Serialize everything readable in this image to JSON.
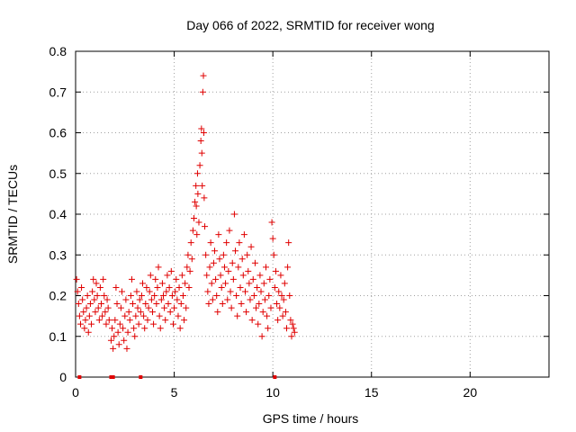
{
  "chart_data": {
    "type": "scatter",
    "title": "Day 066 of 2022, SRMTID for receiver wong",
    "xlabel": "GPS time / hours",
    "ylabel": "SRMTID / TECUs",
    "xlim": [
      0,
      24
    ],
    "ylim": [
      0,
      0.8
    ],
    "x_ticks": [
      0,
      5,
      10,
      15,
      20
    ],
    "y_ticks": [
      0,
      0.1,
      0.2,
      0.3,
      0.4,
      0.5,
      0.6,
      0.7,
      0.8
    ],
    "x_tick_labels": [
      "0",
      "5",
      "10",
      "15",
      "20"
    ],
    "y_tick_labels": [
      "0",
      "0.1",
      "0.2",
      "0.3",
      "0.4",
      "0.5",
      "0.6",
      "0.7",
      "0.8"
    ],
    "grid": true,
    "marker": "+",
    "color": "#e00000",
    "series": [
      {
        "name": "SRMTID",
        "points": [
          [
            0.05,
            0.24
          ],
          [
            0.1,
            0.21
          ],
          [
            0.15,
            0.18
          ],
          [
            0.2,
            0.15
          ],
          [
            0.25,
            0.13
          ],
          [
            0.3,
            0.22
          ],
          [
            0.35,
            0.19
          ],
          [
            0.4,
            0.16
          ],
          [
            0.45,
            0.12
          ],
          [
            0.5,
            0.14
          ],
          [
            0.55,
            0.17
          ],
          [
            0.6,
            0.2
          ],
          [
            0.65,
            0.11
          ],
          [
            0.7,
            0.15
          ],
          [
            0.75,
            0.18
          ],
          [
            0.8,
            0.13
          ],
          [
            0.85,
            0.21
          ],
          [
            0.9,
            0.24
          ],
          [
            0.95,
            0.19
          ],
          [
            1.0,
            0.16
          ],
          [
            1.05,
            0.23
          ],
          [
            1.1,
            0.2
          ],
          [
            1.15,
            0.17
          ],
          [
            1.2,
            0.14
          ],
          [
            1.25,
            0.22
          ],
          [
            1.3,
            0.18
          ],
          [
            1.35,
            0.15
          ],
          [
            1.4,
            0.24
          ],
          [
            1.45,
            0.2
          ],
          [
            1.5,
            0.16
          ],
          [
            1.55,
            0.13
          ],
          [
            1.6,
            0.19
          ],
          [
            1.65,
            0.17
          ],
          [
            1.7,
            0.14
          ],
          [
            1.8,
            0.09
          ],
          [
            1.85,
            0.12
          ],
          [
            1.9,
            0.07
          ],
          [
            1.95,
            0.1
          ],
          [
            2.0,
            0.14
          ],
          [
            2.05,
            0.22
          ],
          [
            2.1,
            0.18
          ],
          [
            2.15,
            0.11
          ],
          [
            2.2,
            0.08
          ],
          [
            2.25,
            0.13
          ],
          [
            2.3,
            0.17
          ],
          [
            2.35,
            0.21
          ],
          [
            2.4,
            0.12
          ],
          [
            2.45,
            0.09
          ],
          [
            2.5,
            0.15
          ],
          [
            2.55,
            0.19
          ],
          [
            2.6,
            0.07
          ],
          [
            2.65,
            0.11
          ],
          [
            2.7,
            0.16
          ],
          [
            2.75,
            0.14
          ],
          [
            2.8,
            0.2
          ],
          [
            2.85,
            0.24
          ],
          [
            2.9,
            0.18
          ],
          [
            2.95,
            0.12
          ],
          [
            3.0,
            0.1
          ],
          [
            3.05,
            0.15
          ],
          [
            3.1,
            0.21
          ],
          [
            3.15,
            0.17
          ],
          [
            3.2,
            0.13
          ],
          [
            3.25,
            0.19
          ],
          [
            3.3,
            0.16
          ],
          [
            3.35,
            0.2
          ],
          [
            3.4,
            0.23
          ],
          [
            3.45,
            0.15
          ],
          [
            3.5,
            0.12
          ],
          [
            3.55,
            0.18
          ],
          [
            3.6,
            0.22
          ],
          [
            3.65,
            0.14
          ],
          [
            3.7,
            0.17
          ],
          [
            3.75,
            0.21
          ],
          [
            3.8,
            0.25
          ],
          [
            3.85,
            0.19
          ],
          [
            3.9,
            0.16
          ],
          [
            3.95,
            0.13
          ],
          [
            4.0,
            0.2
          ],
          [
            4.05,
            0.24
          ],
          [
            4.1,
            0.18
          ],
          [
            4.15,
            0.22
          ],
          [
            4.2,
            0.27
          ],
          [
            4.25,
            0.15
          ],
          [
            4.3,
            0.12
          ],
          [
            4.35,
            0.19
          ],
          [
            4.4,
            0.23
          ],
          [
            4.45,
            0.2
          ],
          [
            4.5,
            0.17
          ],
          [
            4.55,
            0.14
          ],
          [
            4.6,
            0.21
          ],
          [
            4.65,
            0.25
          ],
          [
            4.7,
            0.18
          ],
          [
            4.75,
            0.22
          ],
          [
            4.8,
            0.16
          ],
          [
            4.85,
            0.26
          ],
          [
            4.9,
            0.2
          ],
          [
            4.95,
            0.13
          ],
          [
            5.0,
            0.17
          ],
          [
            5.05,
            0.21
          ],
          [
            5.1,
            0.24
          ],
          [
            5.15,
            0.19
          ],
          [
            5.2,
            0.15
          ],
          [
            5.25,
            0.22
          ],
          [
            5.3,
            0.12
          ],
          [
            5.35,
            0.18
          ],
          [
            5.4,
            0.25
          ],
          [
            5.45,
            0.2
          ],
          [
            5.5,
            0.14
          ],
          [
            5.55,
            0.23
          ],
          [
            5.6,
            0.17
          ],
          [
            5.65,
            0.27
          ],
          [
            5.7,
            0.3
          ],
          [
            5.75,
            0.22
          ],
          [
            5.8,
            0.26
          ],
          [
            5.85,
            0.33
          ],
          [
            5.9,
            0.29
          ],
          [
            5.95,
            0.36
          ],
          [
            6.0,
            0.39
          ],
          [
            6.05,
            0.43
          ],
          [
            6.1,
            0.47
          ],
          [
            6.12,
            0.42
          ],
          [
            6.15,
            0.35
          ],
          [
            6.18,
            0.5
          ],
          [
            6.2,
            0.45
          ],
          [
            6.25,
            0.38
          ],
          [
            6.3,
            0.52
          ],
          [
            6.35,
            0.58
          ],
          [
            6.38,
            0.61
          ],
          [
            6.4,
            0.55
          ],
          [
            6.42,
            0.47
          ],
          [
            6.45,
            0.7
          ],
          [
            6.48,
            0.74
          ],
          [
            6.5,
            0.6
          ],
          [
            6.52,
            0.44
          ],
          [
            6.55,
            0.37
          ],
          [
            6.6,
            0.3
          ],
          [
            6.65,
            0.25
          ],
          [
            6.7,
            0.21
          ],
          [
            6.75,
            0.18
          ],
          [
            6.8,
            0.27
          ],
          [
            6.85,
            0.33
          ],
          [
            6.9,
            0.23
          ],
          [
            6.95,
            0.19
          ],
          [
            7.0,
            0.28
          ],
          [
            7.05,
            0.31
          ],
          [
            7.1,
            0.24
          ],
          [
            7.15,
            0.2
          ],
          [
            7.2,
            0.16
          ],
          [
            7.25,
            0.35
          ],
          [
            7.3,
            0.29
          ],
          [
            7.35,
            0.25
          ],
          [
            7.4,
            0.22
          ],
          [
            7.45,
            0.18
          ],
          [
            7.5,
            0.3
          ],
          [
            7.55,
            0.27
          ],
          [
            7.6,
            0.23
          ],
          [
            7.65,
            0.33
          ],
          [
            7.7,
            0.19
          ],
          [
            7.75,
            0.26
          ],
          [
            7.8,
            0.36
          ],
          [
            7.85,
            0.21
          ],
          [
            7.9,
            0.17
          ],
          [
            7.95,
            0.28
          ],
          [
            8.0,
            0.24
          ],
          [
            8.05,
            0.4
          ],
          [
            8.1,
            0.31
          ],
          [
            8.15,
            0.2
          ],
          [
            8.2,
            0.15
          ],
          [
            8.25,
            0.27
          ],
          [
            8.3,
            0.33
          ],
          [
            8.35,
            0.22
          ],
          [
            8.4,
            0.18
          ],
          [
            8.45,
            0.29
          ],
          [
            8.5,
            0.25
          ],
          [
            8.55,
            0.35
          ],
          [
            8.6,
            0.21
          ],
          [
            8.65,
            0.16
          ],
          [
            8.7,
            0.3
          ],
          [
            8.75,
            0.26
          ],
          [
            8.8,
            0.23
          ],
          [
            8.85,
            0.19
          ],
          [
            8.9,
            0.32
          ],
          [
            8.95,
            0.14
          ],
          [
            9.0,
            0.24
          ],
          [
            9.05,
            0.2
          ],
          [
            9.1,
            0.28
          ],
          [
            9.15,
            0.17
          ],
          [
            9.2,
            0.22
          ],
          [
            9.25,
            0.13
          ],
          [
            9.3,
            0.18
          ],
          [
            9.35,
            0.25
          ],
          [
            9.4,
            0.21
          ],
          [
            9.45,
            0.1
          ],
          [
            9.5,
            0.16
          ],
          [
            9.55,
            0.23
          ],
          [
            9.6,
            0.19
          ],
          [
            9.65,
            0.27
          ],
          [
            9.7,
            0.15
          ],
          [
            9.75,
            0.12
          ],
          [
            9.8,
            0.2
          ],
          [
            9.85,
            0.24
          ],
          [
            9.9,
            0.17
          ],
          [
            9.95,
            0.38
          ],
          [
            10.0,
            0.34
          ],
          [
            10.05,
            0.3
          ],
          [
            10.1,
            0.22
          ],
          [
            10.15,
            0.26
          ],
          [
            10.2,
            0.18
          ],
          [
            10.25,
            0.14
          ],
          [
            10.3,
            0.21
          ],
          [
            10.35,
            0.17
          ],
          [
            10.4,
            0.25
          ],
          [
            10.45,
            0.2
          ],
          [
            10.5,
            0.15
          ],
          [
            10.55,
            0.19
          ],
          [
            10.6,
            0.23
          ],
          [
            10.65,
            0.16
          ],
          [
            10.7,
            0.12
          ],
          [
            10.75,
            0.27
          ],
          [
            10.8,
            0.33
          ],
          [
            10.85,
            0.2
          ],
          [
            10.9,
            0.14
          ],
          [
            10.95,
            0.1
          ],
          [
            11.0,
            0.13
          ],
          [
            11.05,
            0.12
          ],
          [
            11.1,
            0.11
          ]
        ]
      }
    ],
    "markers_at_zero": [
      0.2,
      1.8,
      1.9,
      3.3,
      10.1
    ]
  }
}
